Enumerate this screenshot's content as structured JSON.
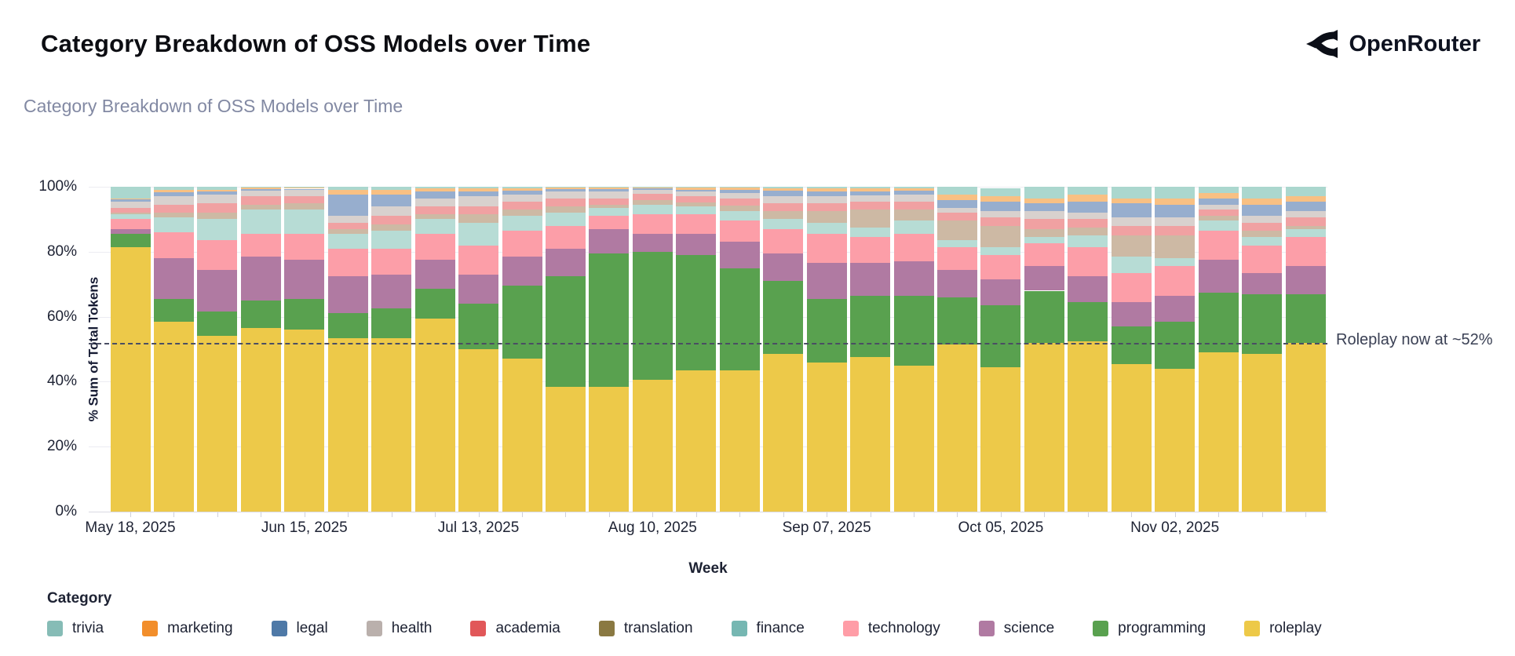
{
  "header": {
    "title": "Category Breakdown of OSS Models over Time",
    "brand": "OpenRouter"
  },
  "chart": {
    "subtitle": "Category Breakdown of OSS Models over Time"
  },
  "chart_data": {
    "type": "bar",
    "stacked": true,
    "title": "Category Breakdown of OSS Models over Time",
    "xlabel": "Week",
    "ylabel": "% Sum of Total Tokens",
    "ylim": [
      0,
      100
    ],
    "y_ticks": [
      0,
      20,
      40,
      60,
      80,
      100
    ],
    "y_tick_labels": [
      "0%",
      "20%",
      "40%",
      "60%",
      "80%",
      "100%"
    ],
    "x_tick_every": 4,
    "x_tick_labels": [
      "May 18, 2025",
      "Jun 15, 2025",
      "Jul 13, 2025",
      "Aug 10, 2025",
      "Sep 07, 2025",
      "Oct 05, 2025",
      "Nov 02, 2025"
    ],
    "weeks": [
      "May 18, 2025",
      "May 25, 2025",
      "Jun 01, 2025",
      "Jun 08, 2025",
      "Jun 15, 2025",
      "Jun 22, 2025",
      "Jun 29, 2025",
      "Jul 06, 2025",
      "Jul 13, 2025",
      "Jul 20, 2025",
      "Jul 27, 2025",
      "Aug 03, 2025",
      "Aug 10, 2025",
      "Aug 17, 2025",
      "Aug 24, 2025",
      "Aug 31, 2025",
      "Sep 07, 2025",
      "Sep 14, 2025",
      "Sep 21, 2025",
      "Sep 28, 2025",
      "Oct 05, 2025",
      "Oct 12, 2025",
      "Oct 19, 2025",
      "Oct 26, 2025",
      "Nov 02, 2025",
      "Nov 09, 2025",
      "Nov 16, 2025",
      "Nov 23, 2025"
    ],
    "reference_line": {
      "value": 52,
      "style": "dashed",
      "label": "Roleplay now at ~52%"
    },
    "legend_title": "Category",
    "legend_order": [
      "trivia",
      "marketing",
      "legal",
      "health",
      "academia",
      "translation",
      "finance",
      "technology",
      "science",
      "programming",
      "roleplay"
    ],
    "legend_colors": {
      "trivia": "#86bcb6",
      "marketing": "#f28e2b",
      "legal": "#4e79a7",
      "health": "#bab0ac",
      "academia": "#e15759",
      "translation": "#8a7942",
      "finance": "#76b7b2",
      "technology": "#ff9da7",
      "science": "#b07aa2",
      "programming": "#59a14f",
      "roleplay": "#edc948"
    },
    "series": [
      {
        "name": "roleplay",
        "color": "#edc949",
        "values": [
          81.5,
          58.5,
          54,
          56.5,
          56,
          53.5,
          53.5,
          59.5,
          50,
          47,
          38.5,
          38.5,
          40.5,
          43.5,
          43.5,
          48.5,
          46,
          47.5,
          45,
          51.5,
          44.5,
          52,
          52.5,
          45.5,
          44,
          49,
          48.5,
          52
        ]
      },
      {
        "name": "programming",
        "color": "#59a14f",
        "values": [
          4,
          7,
          7.5,
          8.5,
          9.5,
          7.5,
          9,
          9,
          14,
          22.5,
          34,
          41,
          39.5,
          35.5,
          31.5,
          22.5,
          19.5,
          19,
          21.5,
          14.5,
          19,
          16,
          12,
          11.5,
          14.5,
          18.5,
          18.5,
          15
        ]
      },
      {
        "name": "science",
        "color": "#b07aa2",
        "values": [
          1.5,
          12.5,
          13,
          13.5,
          12,
          11.5,
          10.5,
          9,
          9,
          9,
          8.5,
          7.5,
          5.5,
          6.5,
          8,
          8.5,
          11,
          10,
          10.5,
          8.5,
          8,
          7.5,
          8,
          7.5,
          8,
          10,
          6.5,
          8.5
        ]
      },
      {
        "name": "technology",
        "color": "#fc9ea8",
        "values": [
          3,
          8,
          9,
          7,
          8,
          8.5,
          8,
          8,
          9,
          8,
          7,
          4,
          6,
          6,
          6.5,
          7.5,
          9,
          8,
          8.5,
          7,
          7.5,
          7,
          9,
          9,
          9,
          9,
          8.5,
          9
        ]
      },
      {
        "name": "finance",
        "color": "#b7dcd5",
        "values": [
          1.5,
          4.5,
          6.5,
          7.5,
          7.5,
          4.5,
          5.5,
          4.5,
          7,
          4.5,
          4,
          2.5,
          3,
          2.5,
          3,
          3,
          3.5,
          3,
          4,
          2,
          2.5,
          2,
          3.5,
          5,
          2.5,
          3,
          2.5,
          2.5
        ]
      },
      {
        "name": "translation",
        "color": "#cdb9a4",
        "values": [
          0.5,
          1.5,
          2,
          1.5,
          2,
          1.5,
          2,
          1.5,
          2.5,
          2,
          2,
          1,
          1.5,
          1.2,
          1.7,
          2.5,
          3.5,
          5.5,
          3.5,
          6,
          6.5,
          2.5,
          2.5,
          6.5,
          7,
          1.5,
          2,
          1
        ]
      },
      {
        "name": "academia",
        "color": "#f0a1a2",
        "values": [
          1.5,
          2.5,
          3,
          2.5,
          2.2,
          2,
          2.5,
          2.5,
          2.5,
          2.5,
          2.5,
          2,
          1.8,
          2,
          2.3,
          2.5,
          2.5,
          2.5,
          2.5,
          2.5,
          2.5,
          3,
          2.5,
          3,
          3,
          2,
          2.5,
          2.5
        ]
      },
      {
        "name": "health",
        "color": "#d8d1ce",
        "values": [
          2,
          2.5,
          2.5,
          1.8,
          1.8,
          2,
          3,
          2.5,
          3,
          2,
          2,
          2,
          1.2,
          1.3,
          1.5,
          2,
          2,
          1.8,
          2,
          1.5,
          2,
          2.5,
          2,
          2.5,
          2.5,
          1.5,
          2,
          2
        ]
      },
      {
        "name": "legal",
        "color": "#97aece",
        "values": [
          0.7,
          1.2,
          1,
          0.5,
          0.4,
          6.5,
          3.5,
          2,
          1.5,
          1.3,
          0.8,
          0.7,
          0.5,
          0.6,
          1,
          1.7,
          1.5,
          1.2,
          1.3,
          2.5,
          3,
          2.5,
          3.5,
          4.5,
          4,
          2,
          3.5,
          3
        ]
      },
      {
        "name": "marketing",
        "color": "#f8c083",
        "values": [
          0.3,
          0.8,
          0.5,
          0.4,
          0.3,
          1.5,
          1.5,
          1,
          1,
          0.8,
          0.4,
          0.5,
          0.3,
          0.6,
          0.7,
          0.9,
          1,
          1,
          0.8,
          1.5,
          1.5,
          1.5,
          2,
          1.5,
          2,
          1.5,
          2,
          1.5
        ]
      },
      {
        "name": "trivia",
        "color": "#abd7ce",
        "values": [
          3.5,
          1,
          1,
          0.3,
          0.3,
          1,
          1,
          0.5,
          0.5,
          0.4,
          0.3,
          0.3,
          0.2,
          0.3,
          0.3,
          0.4,
          0.5,
          0.5,
          0.4,
          2.5,
          2.5,
          3.5,
          2.5,
          3.5,
          3.5,
          2,
          3.5,
          3
        ]
      }
    ]
  }
}
